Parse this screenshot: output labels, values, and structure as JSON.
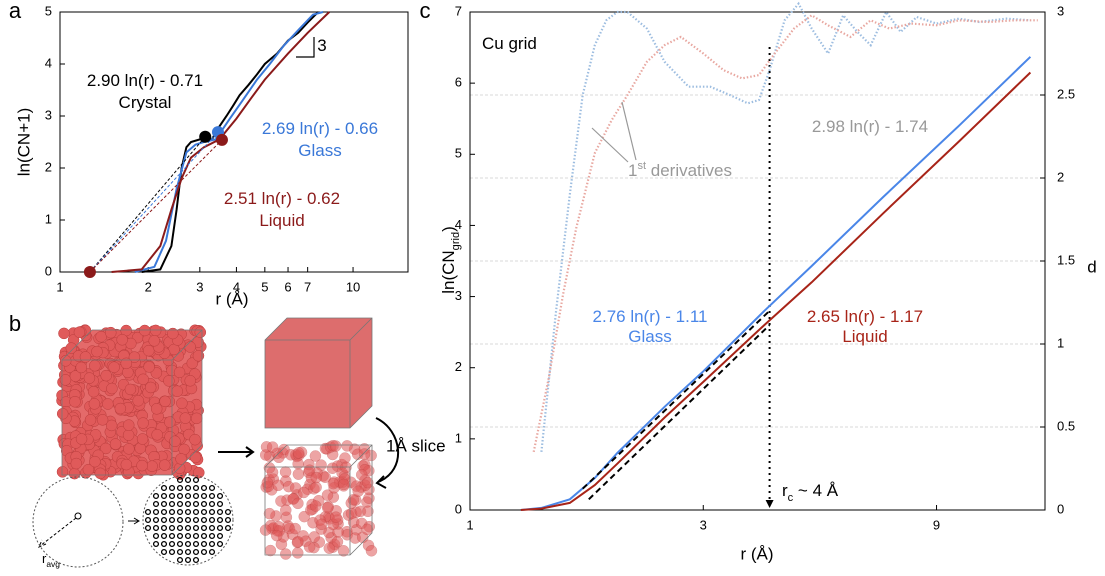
{
  "chart_data": [
    {
      "type": "line",
      "panel_label": "a",
      "x_label": "r (Å)",
      "y_label": "ln(CN+1)",
      "log_x": true,
      "xlim": [
        1,
        15.4
      ],
      "ylim": [
        0,
        5
      ],
      "xticks": [
        1,
        2,
        3,
        4,
        5,
        6,
        7,
        10
      ],
      "yticks": [
        0,
        1,
        2,
        3,
        4,
        5
      ],
      "series": [
        {
          "name": "Crystal",
          "color": "#000000",
          "x": [
            1.9,
            2.2,
            2.4,
            2.5,
            2.6,
            2.7,
            2.8,
            3.0,
            3.3,
            3.5,
            3.7,
            3.9,
            4.1,
            4.4,
            4.7,
            5.0,
            5.5,
            6.0,
            6.5,
            7.0,
            7.6
          ],
          "values": [
            0,
            0.05,
            0.5,
            1.2,
            2.0,
            2.4,
            2.5,
            2.55,
            2.55,
            2.8,
            3.0,
            3.2,
            3.4,
            3.6,
            3.8,
            4.0,
            4.2,
            4.45,
            4.6,
            4.8,
            5.0
          ]
        },
        {
          "name": "Glass",
          "color": "#3a78d8",
          "x": [
            1.8,
            2.1,
            2.3,
            2.5,
            2.7,
            2.9,
            3.1,
            3.4,
            3.8,
            4.2,
            4.7,
            5.2,
            5.8,
            6.5,
            7.3,
            7.9
          ],
          "values": [
            0,
            0.1,
            0.6,
            1.6,
            2.3,
            2.45,
            2.5,
            2.55,
            2.95,
            3.3,
            3.7,
            4.0,
            4.35,
            4.65,
            4.95,
            5.0
          ]
        },
        {
          "name": "Liquid",
          "color": "#8b1a1a",
          "x": [
            1.5,
            1.9,
            2.2,
            2.4,
            2.6,
            2.8,
            3.1,
            3.5,
            4.0,
            4.5,
            5.0,
            6.0,
            7.0,
            8.3
          ],
          "values": [
            0,
            0.05,
            0.5,
            1.2,
            1.8,
            2.2,
            2.4,
            2.55,
            2.95,
            3.35,
            3.7,
            4.2,
            4.6,
            5.0
          ]
        }
      ],
      "points": {
        "x": [
          1.265,
          3.13,
          3.46,
          3.57
        ],
        "values": [
          0,
          2.6,
          2.69,
          2.54
        ],
        "colors": [
          "#8b1a1a",
          "#000000",
          "#3a78d8",
          "#8b1a1a"
        ]
      },
      "annotations": [
        {
          "parts": [
            {
              "text": "2.90 ln(r) - 0.71"
            }
          ],
          "color": "#000000"
        },
        {
          "parts": [
            {
              "text": "Crystal"
            }
          ],
          "color": "#000000"
        },
        {
          "parts": [
            {
              "text": "2.69 ln(r) - 0.66"
            }
          ],
          "color": "#3a78d8"
        },
        {
          "parts": [
            {
              "text": "Glass"
            }
          ],
          "color": "#3a78d8"
        },
        {
          "parts": [
            {
              "text": "2.51 ln(r) - 0.62"
            }
          ],
          "color": "#8b1a1a"
        },
        {
          "parts": [
            {
              "text": "Liquid"
            }
          ],
          "color": "#8b1a1a"
        },
        {
          "parts": [
            {
              "text": "3"
            }
          ],
          "color": "#000000"
        }
      ]
    },
    {
      "type": "line",
      "panel_label": "c",
      "x_label": "r (Å)",
      "y_label": [
        {
          "text": "ln(CN"
        },
        {
          "text": "grid",
          "script": "sub"
        },
        {
          "text": ")"
        }
      ],
      "y2_label": "d",
      "log_x": true,
      "xlim": [
        1,
        15
      ],
      "ylim": [
        0,
        7
      ],
      "y2lim": [
        0,
        3
      ],
      "xticks": [
        1,
        3,
        9
      ],
      "yticks": [
        0,
        1,
        2,
        3,
        4,
        5,
        6,
        7
      ],
      "y2ticks": [
        0,
        0.5,
        1,
        1.5,
        2,
        2.5,
        3
      ],
      "grid": "y2",
      "vline": 4.1,
      "series": [
        {
          "color": "#9dbde0",
          "axis": "y2",
          "dash": "dotted",
          "x": [
            1.4,
            1.5,
            1.6,
            1.7,
            1.8,
            1.9,
            2.0,
            2.1,
            2.3,
            2.5,
            2.8,
            3.1,
            3.4,
            3.7,
            3.9,
            4.1,
            4.4,
            4.7,
            5.0,
            5.4,
            5.8,
            6.2,
            6.6,
            7.1,
            7.6,
            8.2,
            9.0,
            10,
            11,
            12.5,
            14
          ],
          "values": [
            0.35,
            1.2,
            1.9,
            2.5,
            2.8,
            2.95,
            3.0,
            3.0,
            2.9,
            2.7,
            2.55,
            2.55,
            2.5,
            2.45,
            2.47,
            2.65,
            2.95,
            3.05,
            2.9,
            2.75,
            2.98,
            2.88,
            2.8,
            3.0,
            2.88,
            2.97,
            2.93,
            2.96,
            2.94,
            2.96,
            2.95
          ]
        },
        {
          "color": "#e8a7a0",
          "axis": "y2",
          "dash": "dotted",
          "x": [
            1.35,
            1.45,
            1.55,
            1.65,
            1.8,
            1.95,
            2.1,
            2.3,
            2.5,
            2.7,
            3.0,
            3.3,
            3.6,
            3.9,
            4.2,
            4.6,
            5.0,
            5.4,
            6.0,
            6.6,
            7.2,
            8.0,
            9.0,
            10,
            11.5,
            13,
            14.5
          ],
          "values": [
            0.35,
            0.8,
            1.3,
            1.7,
            2.15,
            2.35,
            2.5,
            2.7,
            2.8,
            2.85,
            2.75,
            2.65,
            2.6,
            2.62,
            2.75,
            2.9,
            2.98,
            2.92,
            2.85,
            2.95,
            2.9,
            2.93,
            2.92,
            2.95,
            2.94,
            2.95,
            2.95
          ]
        },
        {
          "color": "#4a86e8",
          "x": [
            1.27,
            1.4,
            1.6,
            1.8,
            2.0,
            2.5,
            3.0,
            4.0,
            5.0,
            7.0,
            10,
            14
          ],
          "values": [
            0,
            0.03,
            0.15,
            0.45,
            0.8,
            1.45,
            1.95,
            2.8,
            3.43,
            4.4,
            5.4,
            6.37
          ]
        },
        {
          "color": "#a82418",
          "x": [
            1.27,
            1.4,
            1.6,
            1.8,
            2.0,
            2.5,
            3.0,
            4.0,
            5.0,
            7.0,
            10,
            14
          ],
          "values": [
            0,
            0.02,
            0.1,
            0.35,
            0.65,
            1.3,
            1.8,
            2.6,
            3.2,
            4.17,
            5.18,
            6.15
          ]
        },
        {
          "color": "#000000",
          "dash": "dashed",
          "x": [
            1.7,
            4.1
          ],
          "values": [
            0.3,
            2.8
          ]
        },
        {
          "color": "#000000",
          "dash": "dashed",
          "x": [
            1.75,
            4.1
          ],
          "values": [
            0.15,
            2.6
          ]
        }
      ],
      "annotations": [
        {
          "parts": [
            {
              "text": "Cu grid"
            }
          ],
          "color": "#000000"
        },
        {
          "parts": [
            {
              "text": "1"
            },
            {
              "text": "st",
              "script": "sup"
            },
            {
              "text": " derivatives"
            }
          ],
          "color": "#999999"
        },
        {
          "parts": [
            {
              "text": "2.98 ln(r) - 1.74"
            }
          ],
          "color": "#999999"
        },
        {
          "parts": [
            {
              "text": "2.76 ln(r) - 1.11"
            }
          ],
          "color": "#4a86e8"
        },
        {
          "parts": [
            {
              "text": "Glass"
            }
          ],
          "color": "#4a86e8"
        },
        {
          "parts": [
            {
              "text": "2.65 ln(r) - 1.17"
            }
          ],
          "color": "#a82418"
        },
        {
          "parts": [
            {
              "text": "Liquid"
            }
          ],
          "color": "#a82418"
        },
        {
          "parts": [
            {
              "text": "r"
            },
            {
              "text": "c",
              "script": "sub"
            },
            {
              "text": " ~ 4 Å"
            }
          ],
          "color": "#000000"
        }
      ]
    }
  ],
  "diagram": {
    "panel_label": "b",
    "slice_label": "1Å slice",
    "radius_label": [
      {
        "text": "r"
      },
      {
        "text": "avg",
        "script": "sub"
      }
    ]
  }
}
